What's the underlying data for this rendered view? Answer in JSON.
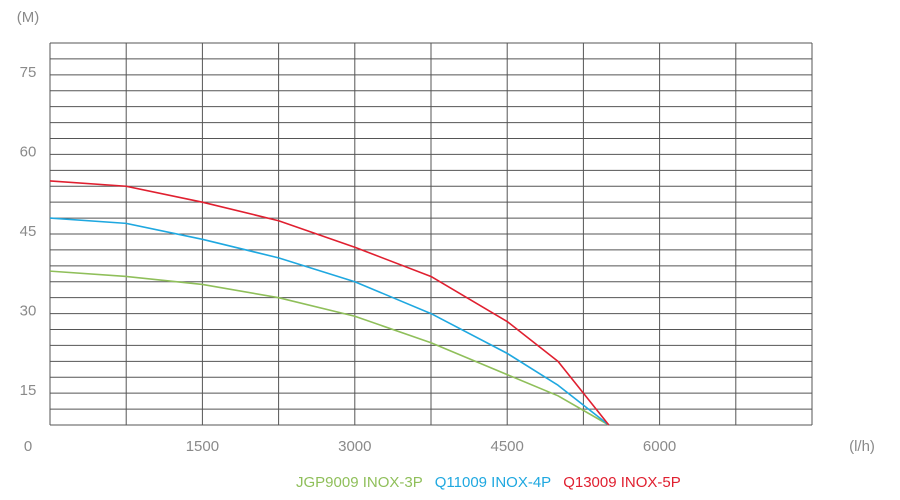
{
  "chart_data": {
    "type": "line",
    "y_label": "(M)",
    "x_label": "(l/h)",
    "xlim": [
      0,
      7500
    ],
    "ylim": [
      9,
      81
    ],
    "xticks": [
      0,
      1500,
      3000,
      4500,
      6000
    ],
    "yticks": [
      15,
      30,
      45,
      60,
      75
    ],
    "xgridlines": [
      0,
      750,
      1500,
      2250,
      3000,
      3750,
      4500,
      5250,
      6000,
      6750,
      7500
    ],
    "ygridlines": [
      9,
      12,
      15,
      18,
      21,
      24,
      27,
      30,
      33,
      36,
      39,
      42,
      45,
      48,
      51,
      54,
      57,
      60,
      63,
      66,
      69,
      72,
      75,
      78,
      81
    ],
    "x": [
      0,
      750,
      1500,
      2250,
      3000,
      3750,
      4500,
      5000,
      5500
    ],
    "series": [
      {
        "name": "JGP9009 INOX-3P",
        "color": "#8fbf5a",
        "values": [
          38,
          37,
          35.5,
          33,
          29.5,
          24.5,
          18.5,
          14.5,
          9
        ]
      },
      {
        "name": "Q11009 INOX-4P",
        "color": "#1fa8e0",
        "values": [
          48,
          47,
          44,
          40.5,
          36,
          30,
          22.5,
          16.5,
          9
        ]
      },
      {
        "name": "Q13009 INOX-5P",
        "color": "#e02030",
        "values": [
          55,
          54,
          51,
          47.5,
          42.5,
          37,
          28.5,
          21,
          9
        ]
      }
    ]
  }
}
